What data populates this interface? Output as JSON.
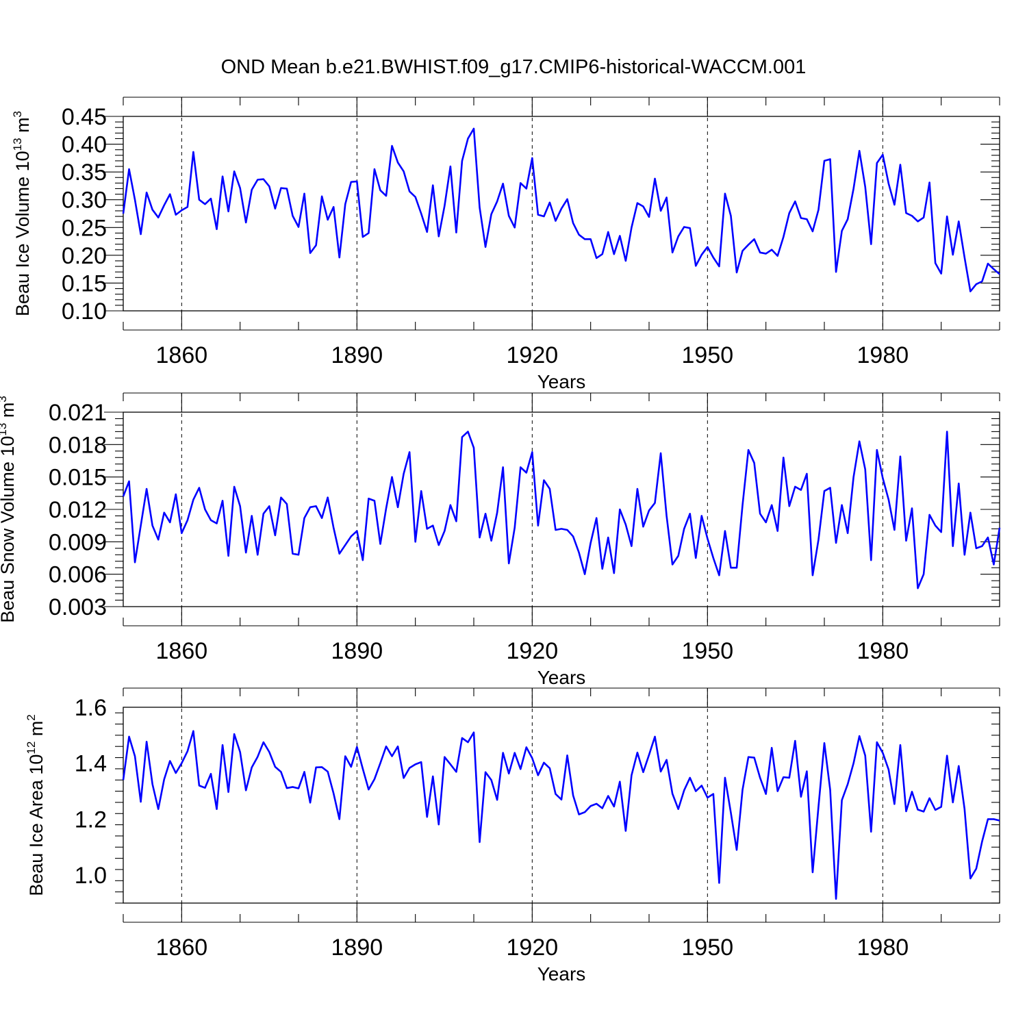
{
  "title": "OND Mean b.e21.BWHIST.f09_g17.CMIP6-historical-WACCM.001",
  "chart_data": [
    {
      "type": "line",
      "ylabel": {
        "text": "Beau Ice Volume 10",
        "sup": "13",
        "unit": " m",
        "unit_sup": "3"
      },
      "xlabel": "Years",
      "xlim": [
        1850,
        2000
      ],
      "ylim": [
        0.1,
        0.45
      ],
      "xticks": [
        1860,
        1890,
        1920,
        1950,
        1980
      ],
      "yticks": [
        "0.10",
        "0.15",
        "0.20",
        "0.25",
        "0.30",
        "0.35",
        "0.40",
        "0.45"
      ],
      "series": [
        {
          "name": "Beau Ice Volume",
          "color": "#0000ff",
          "start_year": 1850,
          "values": [
            0.275,
            0.355,
            0.3,
            0.238,
            0.313,
            0.282,
            0.268,
            0.29,
            0.31,
            0.273,
            0.281,
            0.287,
            0.386,
            0.3,
            0.292,
            0.302,
            0.247,
            0.342,
            0.279,
            0.351,
            0.321,
            0.259,
            0.318,
            0.336,
            0.337,
            0.324,
            0.284,
            0.321,
            0.32,
            0.271,
            0.251,
            0.311,
            0.204,
            0.218,
            0.306,
            0.264,
            0.287,
            0.196,
            0.292,
            0.332,
            0.333,
            0.233,
            0.24,
            0.355,
            0.317,
            0.307,
            0.397,
            0.367,
            0.351,
            0.315,
            0.305,
            0.275,
            0.242,
            0.326,
            0.234,
            0.289,
            0.36,
            0.241,
            0.37,
            0.41,
            0.428,
            0.286,
            0.215,
            0.274,
            0.297,
            0.329,
            0.271,
            0.25,
            0.33,
            0.32,
            0.375,
            0.273,
            0.27,
            0.295,
            0.262,
            0.284,
            0.301,
            0.258,
            0.237,
            0.229,
            0.229,
            0.195,
            0.202,
            0.242,
            0.202,
            0.235,
            0.19,
            0.25,
            0.294,
            0.288,
            0.269,
            0.338,
            0.28,
            0.304,
            0.205,
            0.234,
            0.251,
            0.249,
            0.181,
            0.201,
            0.215,
            0.196,
            0.18,
            0.311,
            0.271,
            0.169,
            0.208,
            0.219,
            0.229,
            0.205,
            0.203,
            0.21,
            0.199,
            0.233,
            0.276,
            0.297,
            0.267,
            0.265,
            0.243,
            0.282,
            0.37,
            0.373,
            0.17,
            0.244,
            0.265,
            0.32,
            0.388,
            0.323,
            0.22,
            0.366,
            0.381,
            0.329,
            0.291,
            0.363,
            0.276,
            0.271,
            0.261,
            0.268,
            0.331,
            0.186,
            0.167,
            0.27,
            0.201,
            0.261,
            0.196,
            0.135,
            0.148,
            0.153,
            0.185,
            0.175,
            0.166
          ]
        }
      ]
    },
    {
      "type": "line",
      "ylabel": {
        "text": "Beau Snow Volume 10",
        "sup": "13",
        "unit": " m",
        "unit_sup": "3"
      },
      "xlabel": "Years",
      "xlim": [
        1850,
        2000
      ],
      "ylim": [
        0.003,
        0.021
      ],
      "xticks": [
        1860,
        1890,
        1920,
        1950,
        1980
      ],
      "yticks": [
        "0.003",
        "0.006",
        "0.009",
        "0.012",
        "0.015",
        "0.018",
        "0.021"
      ],
      "series": [
        {
          "name": "Beau Snow Volume",
          "color": "#0000ff",
          "start_year": 1850,
          "values": [
            0.0132,
            0.0146,
            0.0071,
            0.0105,
            0.0139,
            0.0105,
            0.0092,
            0.0117,
            0.0108,
            0.0134,
            0.0098,
            0.011,
            0.0129,
            0.014,
            0.012,
            0.011,
            0.0107,
            0.0128,
            0.0077,
            0.0141,
            0.0123,
            0.008,
            0.0114,
            0.0078,
            0.0116,
            0.0123,
            0.0096,
            0.0131,
            0.0125,
            0.0079,
            0.0078,
            0.0112,
            0.0122,
            0.0123,
            0.0112,
            0.0131,
            0.0103,
            0.0079,
            0.0087,
            0.0095,
            0.01,
            0.0073,
            0.013,
            0.0128,
            0.0088,
            0.0121,
            0.015,
            0.0122,
            0.0153,
            0.0173,
            0.009,
            0.0137,
            0.0102,
            0.0105,
            0.0087,
            0.01,
            0.0124,
            0.0109,
            0.0187,
            0.0192,
            0.0177,
            0.0094,
            0.0116,
            0.0091,
            0.0117,
            0.0159,
            0.007,
            0.0103,
            0.0159,
            0.0154,
            0.0173,
            0.0105,
            0.0147,
            0.0139,
            0.0101,
            0.0102,
            0.0101,
            0.0095,
            0.008,
            0.006,
            0.0089,
            0.0112,
            0.0065,
            0.0094,
            0.0061,
            0.012,
            0.0106,
            0.0086,
            0.0139,
            0.0104,
            0.0119,
            0.0126,
            0.0172,
            0.0114,
            0.0069,
            0.0077,
            0.0102,
            0.0116,
            0.0075,
            0.0114,
            0.0093,
            0.0075,
            0.0059,
            0.01,
            0.0066,
            0.0066,
            0.0124,
            0.0175,
            0.0163,
            0.0116,
            0.0108,
            0.0124,
            0.01,
            0.0168,
            0.0123,
            0.0141,
            0.0138,
            0.0153,
            0.0059,
            0.0092,
            0.0137,
            0.014,
            0.0089,
            0.0124,
            0.0098,
            0.015,
            0.0183,
            0.0157,
            0.0073,
            0.0175,
            0.0149,
            0.0129,
            0.0101,
            0.0169,
            0.0091,
            0.0121,
            0.0047,
            0.006,
            0.0115,
            0.0105,
            0.0099,
            0.0192,
            0.0086,
            0.0144,
            0.0078,
            0.0117,
            0.0084,
            0.0086,
            0.0094,
            0.0069,
            0.0103
          ]
        }
      ]
    },
    {
      "type": "line",
      "ylabel": {
        "text": "Beau Ice Area 10",
        "sup": "12",
        "unit": " m",
        "unit_sup": "2"
      },
      "xlabel": "Years",
      "xlim": [
        1850,
        2000
      ],
      "ylim": [
        0.9,
        1.6
      ],
      "xticks": [
        1860,
        1890,
        1920,
        1950,
        1980
      ],
      "yticks": [
        "1.0",
        "1.2",
        "1.4",
        "1.6"
      ],
      "series": [
        {
          "name": "Beau Ice Area",
          "color": "#0000ff",
          "start_year": 1850,
          "values": [
            1.34,
            1.495,
            1.425,
            1.262,
            1.477,
            1.325,
            1.236,
            1.342,
            1.408,
            1.365,
            1.4,
            1.443,
            1.515,
            1.32,
            1.312,
            1.362,
            1.236,
            1.465,
            1.297,
            1.504,
            1.44,
            1.303,
            1.385,
            1.423,
            1.475,
            1.44,
            1.387,
            1.369,
            1.311,
            1.315,
            1.31,
            1.369,
            1.259,
            1.385,
            1.386,
            1.37,
            1.292,
            1.2,
            1.425,
            1.387,
            1.458,
            1.38,
            1.306,
            1.343,
            1.4,
            1.46,
            1.425,
            1.46,
            1.347,
            1.383,
            1.396,
            1.404,
            1.208,
            1.353,
            1.181,
            1.422,
            1.396,
            1.369,
            1.49,
            1.475,
            1.51,
            1.118,
            1.368,
            1.34,
            1.269,
            1.437,
            1.363,
            1.437,
            1.379,
            1.457,
            1.418,
            1.357,
            1.402,
            1.382,
            1.29,
            1.27,
            1.428,
            1.285,
            1.217,
            1.225,
            1.247,
            1.255,
            1.239,
            1.283,
            1.245,
            1.334,
            1.158,
            1.357,
            1.438,
            1.368,
            1.43,
            1.495,
            1.37,
            1.412,
            1.291,
            1.236,
            1.303,
            1.348,
            1.3,
            1.32,
            1.277,
            1.29,
            0.972,
            1.348,
            1.223,
            1.09,
            1.305,
            1.422,
            1.42,
            1.348,
            1.29,
            1.455,
            1.3,
            1.35,
            1.348,
            1.48,
            1.28,
            1.371,
            1.01,
            1.245,
            1.472,
            1.305,
            0.915,
            1.268,
            1.325,
            1.4,
            1.497,
            1.427,
            1.155,
            1.475,
            1.437,
            1.377,
            1.254,
            1.465,
            1.228,
            1.298,
            1.234,
            1.227,
            1.275,
            1.233,
            1.244,
            1.427,
            1.26,
            1.39,
            1.236,
            0.988,
            1.023,
            1.12,
            1.2,
            1.2,
            1.195
          ]
        }
      ]
    }
  ]
}
